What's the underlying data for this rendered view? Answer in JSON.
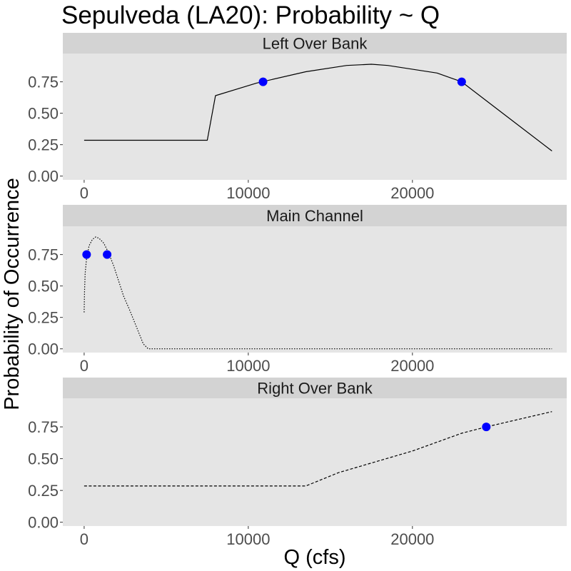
{
  "chart_data": {
    "type": "line",
    "title": "Sepulveda (LA20): Probability ~ Q",
    "xlabel": "Q (cfs)",
    "ylabel": "Probability of Occurrence",
    "xlim": [
      -1300,
      29400
    ],
    "ylim": [
      -0.03,
      0.975
    ],
    "x_ticks": [
      0,
      10000,
      20000
    ],
    "x_tick_labels": [
      "0",
      "10000",
      "20000"
    ],
    "y_ticks": [
      0,
      0.25,
      0.5,
      0.75
    ],
    "y_tick_labels": [
      "0.00",
      "0.25",
      "0.50",
      "0.75"
    ],
    "grid": false,
    "panel_background": "#e5e5e5",
    "strip_background": "#d3d3d3",
    "point_color": "#0000ff",
    "line_color": "#000000",
    "panels": [
      {
        "label": "Left Over Bank",
        "line_style": "solid",
        "line": {
          "x": [
            0,
            7500,
            8000,
            10500,
            13500,
            16000,
            17500,
            18500,
            21500,
            23000,
            25000,
            28500
          ],
          "y": [
            0.285,
            0.285,
            0.64,
            0.74,
            0.83,
            0.88,
            0.89,
            0.88,
            0.82,
            0.75,
            0.55,
            0.2
          ]
        },
        "points": {
          "x": [
            10900,
            23000
          ],
          "y": [
            0.75,
            0.75
          ]
        }
      },
      {
        "label": "Main Channel",
        "line_style": "dotted",
        "line": {
          "x": [
            0,
            20,
            60,
            150,
            300,
            500,
            700,
            900,
            1200,
            1500,
            1800,
            2100,
            2400,
            2800,
            3200,
            3600,
            3900,
            6000,
            10000,
            15000,
            20000,
            25000,
            28500
          ],
          "y": [
            0.29,
            0.45,
            0.6,
            0.72,
            0.82,
            0.87,
            0.89,
            0.88,
            0.84,
            0.76,
            0.66,
            0.54,
            0.42,
            0.3,
            0.17,
            0.04,
            0.0,
            0.0,
            0.0,
            0.0,
            0.0,
            0.0,
            0.0
          ]
        },
        "points": {
          "x": [
            150,
            1400
          ],
          "y": [
            0.75,
            0.75
          ]
        }
      },
      {
        "label": "Right Over Bank",
        "line_style": "dashed",
        "line": {
          "x": [
            0,
            13500,
            15500,
            20000,
            23000,
            24500,
            28500
          ],
          "y": [
            0.285,
            0.285,
            0.39,
            0.56,
            0.7,
            0.75,
            0.87
          ]
        },
        "points": {
          "x": [
            24500
          ],
          "y": [
            0.75
          ]
        }
      }
    ]
  }
}
